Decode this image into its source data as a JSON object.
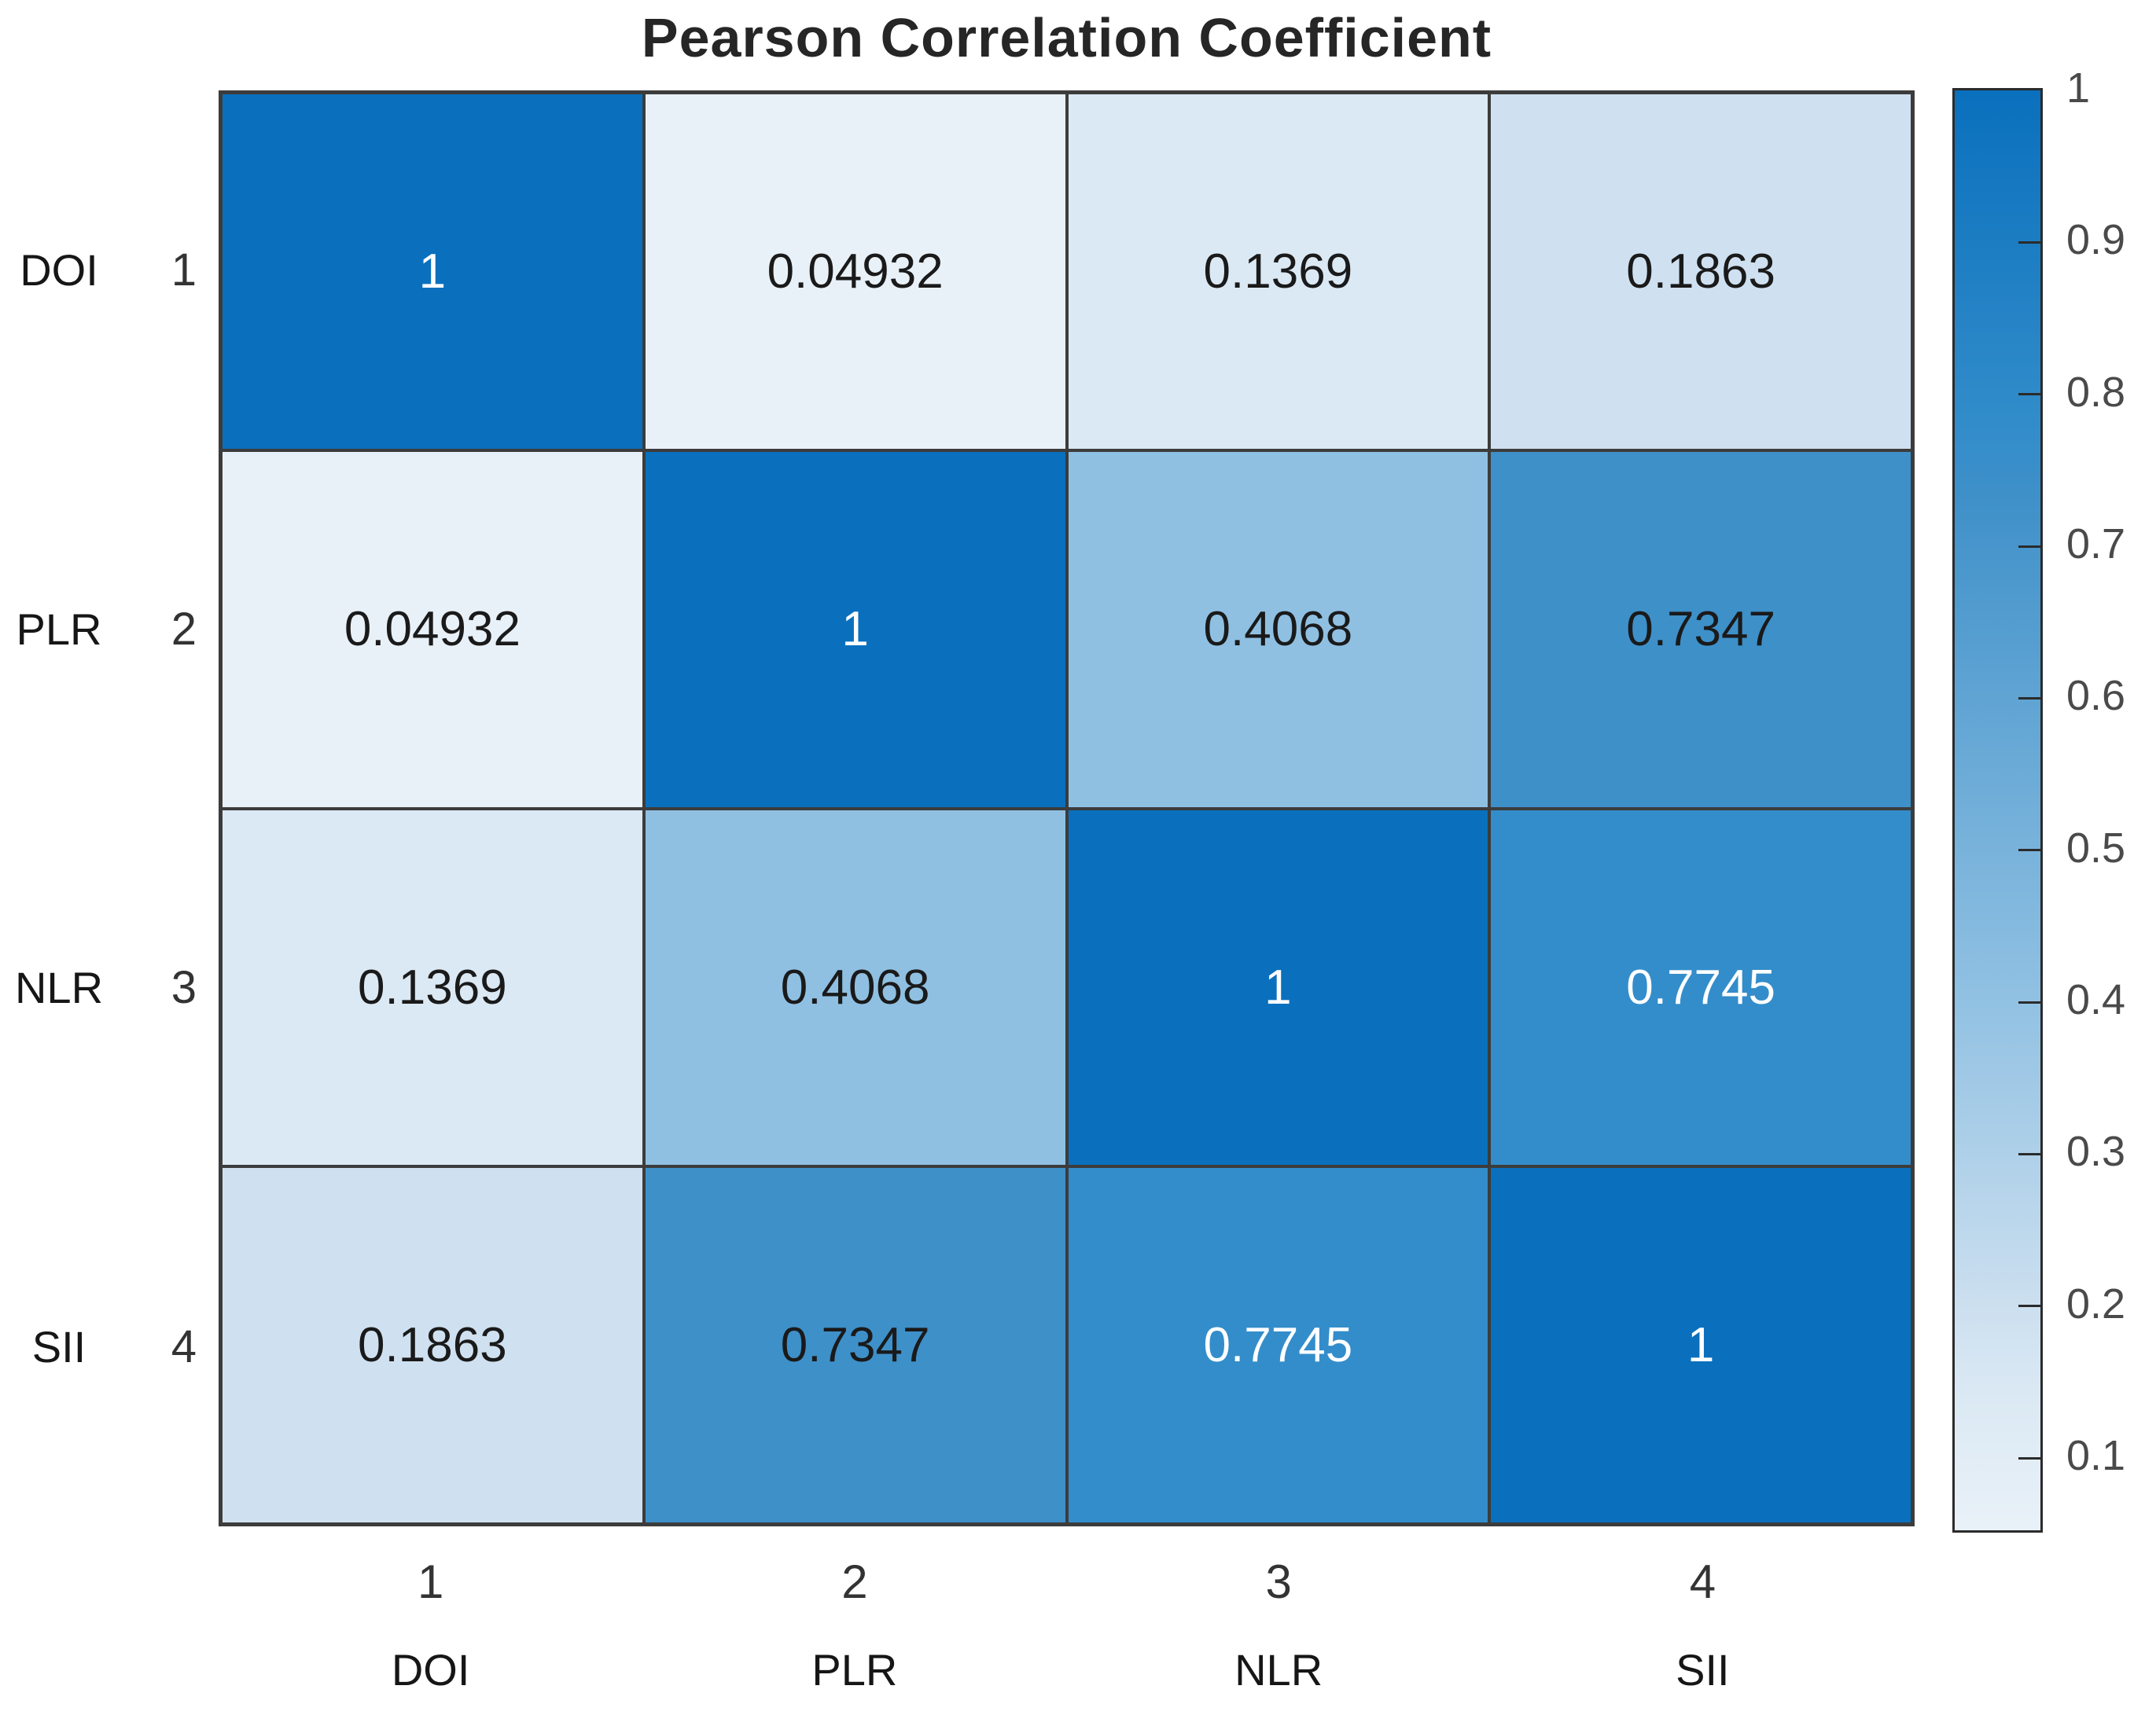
{
  "title": "Pearson Correlation Coefficient",
  "colors": {
    "background": "#ffffff",
    "grid_line": "#3c3c3c",
    "title_text": "#262626",
    "category_text": "#161616",
    "tick_text": "#333333",
    "colorbar_tick_text": "#4a4a4a",
    "cell_text_dark": "#1a1a1a",
    "cell_text_light": "#ffffff",
    "heatmap_max_blue": "#0a70bd",
    "heatmap_min_blue": "#e9f1f8"
  },
  "chart_data": {
    "type": "heatmap",
    "title": "Pearson Correlation Coefficient",
    "categories": [
      "DOI",
      "PLR",
      "NLR",
      "SII"
    ],
    "x_tick_numbers": [
      "1",
      "2",
      "3",
      "4"
    ],
    "y_tick_numbers": [
      "1",
      "2",
      "3",
      "4"
    ],
    "matrix": [
      [
        1,
        0.04932,
        0.1369,
        0.1863
      ],
      [
        0.04932,
        1,
        0.4068,
        0.7347
      ],
      [
        0.1369,
        0.4068,
        1,
        0.7745
      ],
      [
        0.1863,
        0.7347,
        0.7745,
        1
      ]
    ],
    "cell_labels": [
      [
        "1",
        "0.04932",
        "0.1369",
        "0.1863"
      ],
      [
        "0.04932",
        "1",
        "0.4068",
        "0.7347"
      ],
      [
        "0.1369",
        "0.4068",
        "1",
        "0.7745"
      ],
      [
        "0.1863",
        "0.7347",
        "0.7745",
        "1"
      ]
    ],
    "value_colors": {
      "1": "#0a70bd",
      "0.04932": "#e9f1f8",
      "0.1369": "#dbe9f4",
      "0.1863": "#cfe1f0",
      "0.4068": "#8fc0e2",
      "0.7347": "#3e90c9",
      "0.7745": "#338dca"
    },
    "white_text_values": [
      "1",
      "0.7745"
    ],
    "grid": true,
    "legend_position": "right-colorbar",
    "colorbar": {
      "min": 0.04932,
      "max": 1,
      "tick_labels": [
        "1",
        "0.9",
        "0.8",
        "0.7",
        "0.6",
        "0.5",
        "0.4",
        "0.3",
        "0.2",
        "0.1"
      ],
      "tick_values": [
        1,
        0.9,
        0.8,
        0.7,
        0.6,
        0.5,
        0.4,
        0.3,
        0.2,
        0.1
      ],
      "gradient_stops": [
        {
          "value": 0.04932,
          "color": "#e9f1f8"
        },
        {
          "value": 0.1369,
          "color": "#dbe9f4"
        },
        {
          "value": 0.1863,
          "color": "#cfe1f0"
        },
        {
          "value": 0.4068,
          "color": "#8fc0e2"
        },
        {
          "value": 0.7347,
          "color": "#3e90c9"
        },
        {
          "value": 0.7745,
          "color": "#338dca"
        },
        {
          "value": 1,
          "color": "#0a70bd"
        }
      ]
    }
  }
}
